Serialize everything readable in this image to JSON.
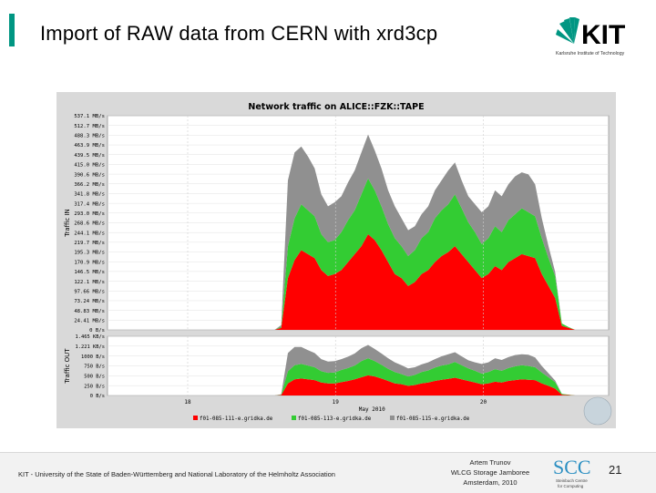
{
  "slide": {
    "title": "Import of RAW data from CERN with xrd3cp",
    "page_number": "21",
    "footer_left": "KIT - University of the State of Baden-Württemberg and National Laboratory of the Helmholtz Association",
    "footer_mid": [
      "Artem Trunov",
      "WLCG Storage Jamboree",
      "Amsterdam, 2010"
    ],
    "logo_kit_text": "KIT",
    "logo_kit_sub": "Karlsruhe Institute of Technology",
    "logo_scc_text": "SCC",
    "logo_scc_sub": [
      "Steinbuch Centre",
      "for Computing"
    ]
  },
  "colors": {
    "accent": "#009682",
    "series_red": "#ff0000",
    "series_green": "#33cc33",
    "series_gray": "#909090"
  },
  "chart_data": {
    "type": "area",
    "title": "Network traffic on ALICE::FZK::TAPE",
    "xlabel": "May 2010",
    "x_ticks": [
      "18",
      "19",
      "20"
    ],
    "legend": [
      "f01-085-111-e.gridka.de",
      "f01-085-113-e.gridka.de",
      "f01-085-115-e.gridka.de"
    ],
    "stacking": "stacked",
    "panels": [
      {
        "name": "traffic-in",
        "ylabel": "Traffic  IN",
        "ylim": [
          0,
          537.1
        ],
        "y_ticks": [
          "537.1 MB/s",
          "512.7 MB/s",
          "488.3 MB/s",
          "463.9 MB/s",
          "439.5 MB/s",
          "415.0 MB/s",
          "390.6 MB/s",
          "366.2 MB/s",
          "341.8 MB/s",
          "317.4 MB/s",
          "293.0 MB/s",
          "268.6 MB/s",
          "244.1 MB/s",
          "219.7 MB/s",
          "195.3 MB/s",
          "170.9 MB/s",
          "146.5 MB/s",
          "122.1 MB/s",
          "97.66 MB/s",
          "73.24 MB/s",
          "48.83 MB/s",
          "24.41 MB/s",
          "0 B/s"
        ],
        "series": [
          {
            "name": "f01-085-111-e.gridka.de",
            "values": [
              0,
              0,
              0,
              0,
              0,
              0,
              0,
              0,
              0,
              0,
              0,
              0,
              0,
              0,
              0,
              0,
              0,
              0,
              0,
              0,
              0,
              0,
              0,
              0,
              0,
              0,
              5,
              130,
              175,
              200,
              190,
              180,
              150,
              135,
              140,
              150,
              170,
              190,
              210,
              240,
              225,
              200,
              170,
              140,
              130,
              110,
              120,
              140,
              150,
              170,
              185,
              195,
              210,
              190,
              170,
              150,
              130,
              140,
              160,
              150,
              170,
              180,
              190,
              185,
              180,
              140,
              110,
              80,
              10,
              5,
              0,
              0,
              0,
              0,
              0,
              0
            ]
          },
          {
            "name": "f01-085-113-e.gridka.de",
            "values": [
              0,
              0,
              0,
              0,
              0,
              0,
              0,
              0,
              0,
              0,
              0,
              0,
              0,
              0,
              0,
              0,
              0,
              0,
              0,
              0,
              0,
              0,
              0,
              0,
              0,
              0,
              3,
              80,
              105,
              115,
              110,
              105,
              90,
              85,
              85,
              95,
              105,
              110,
              130,
              140,
              125,
              110,
              95,
              90,
              80,
              75,
              80,
              90,
              95,
              110,
              115,
              120,
              130,
              115,
              100,
              95,
              85,
              90,
              100,
              95,
              105,
              110,
              115,
              110,
              105,
              90,
              70,
              55,
              6,
              2,
              0,
              0,
              0,
              0,
              0,
              0
            ]
          },
          {
            "name": "f01-085-115-e.gridka.de",
            "values": [
              0,
              0,
              0,
              0,
              0,
              0,
              0,
              0,
              0,
              0,
              0,
              0,
              0,
              0,
              0,
              0,
              0,
              0,
              0,
              0,
              0,
              0,
              0,
              0,
              0,
              0,
              4,
              165,
              165,
              145,
              135,
              120,
              100,
              90,
              95,
              90,
              95,
              100,
              105,
              110,
              100,
              95,
              85,
              80,
              70,
              65,
              60,
              60,
              65,
              70,
              75,
              85,
              80,
              70,
              65,
              70,
              80,
              80,
              90,
              90,
              90,
              95,
              90,
              95,
              80,
              50,
              30,
              10,
              0,
              0,
              0,
              0,
              0,
              0,
              0,
              0
            ]
          }
        ]
      },
      {
        "name": "traffic-out",
        "ylabel": "Traffic  OUT",
        "ylim": [
          0,
          1.465
        ],
        "y_ticks": [
          "1.465 KB/s",
          "1.221 KB/s",
          "1000 B/s",
          "750 B/s",
          "500 B/s",
          "250 B/s",
          "0 B/s"
        ],
        "series": [
          {
            "name": "f01-085-111-e.gridka.de",
            "values": [
              0,
              0,
              0,
              0,
              0,
              0,
              0,
              0,
              0,
              0,
              0,
              0,
              0,
              0,
              0,
              0,
              0,
              0,
              0,
              0,
              0,
              0,
              0,
              0,
              0,
              0,
              0.01,
              0.3,
              0.4,
              0.42,
              0.4,
              0.38,
              0.32,
              0.3,
              0.3,
              0.33,
              0.36,
              0.4,
              0.45,
              0.5,
              0.47,
              0.42,
              0.36,
              0.3,
              0.28,
              0.24,
              0.26,
              0.3,
              0.32,
              0.36,
              0.39,
              0.41,
              0.44,
              0.4,
              0.36,
              0.32,
              0.28,
              0.3,
              0.34,
              0.32,
              0.36,
              0.38,
              0.4,
              0.39,
              0.38,
              0.3,
              0.24,
              0.17,
              0.02,
              0.01,
              0,
              0,
              0,
              0,
              0,
              0
            ]
          },
          {
            "name": "f01-085-113-e.gridka.de",
            "values": [
              0,
              0,
              0,
              0,
              0,
              0,
              0,
              0,
              0,
              0,
              0,
              0,
              0,
              0,
              0,
              0,
              0,
              0,
              0,
              0,
              0,
              0,
              0,
              0,
              0,
              0,
              0.01,
              0.3,
              0.35,
              0.36,
              0.34,
              0.32,
              0.28,
              0.26,
              0.27,
              0.3,
              0.32,
              0.34,
              0.4,
              0.42,
              0.38,
              0.34,
              0.3,
              0.28,
              0.25,
              0.23,
              0.25,
              0.28,
              0.3,
              0.33,
              0.35,
              0.36,
              0.39,
              0.35,
              0.31,
              0.29,
              0.26,
              0.28,
              0.31,
              0.29,
              0.32,
              0.34,
              0.35,
              0.34,
              0.32,
              0.27,
              0.21,
              0.16,
              0.02,
              0.01,
              0,
              0,
              0,
              0,
              0,
              0
            ]
          },
          {
            "name": "f01-085-115-e.gridka.de",
            "values": [
              0,
              0,
              0,
              0,
              0,
              0,
              0,
              0,
              0,
              0,
              0,
              0,
              0,
              0,
              0,
              0,
              0,
              0,
              0,
              0,
              0,
              0,
              0,
              0,
              0,
              0,
              0.01,
              0.45,
              0.45,
              0.42,
              0.38,
              0.35,
              0.3,
              0.28,
              0.28,
              0.27,
              0.28,
              0.3,
              0.32,
              0.33,
              0.3,
              0.28,
              0.26,
              0.24,
              0.22,
              0.2,
              0.19,
              0.19,
              0.2,
              0.21,
              0.23,
              0.25,
              0.24,
              0.22,
              0.2,
              0.21,
              0.24,
              0.24,
              0.27,
              0.27,
              0.27,
              0.28,
              0.27,
              0.28,
              0.24,
              0.16,
              0.1,
              0.04,
              0,
              0,
              0,
              0,
              0,
              0,
              0,
              0
            ]
          }
        ]
      }
    ]
  }
}
